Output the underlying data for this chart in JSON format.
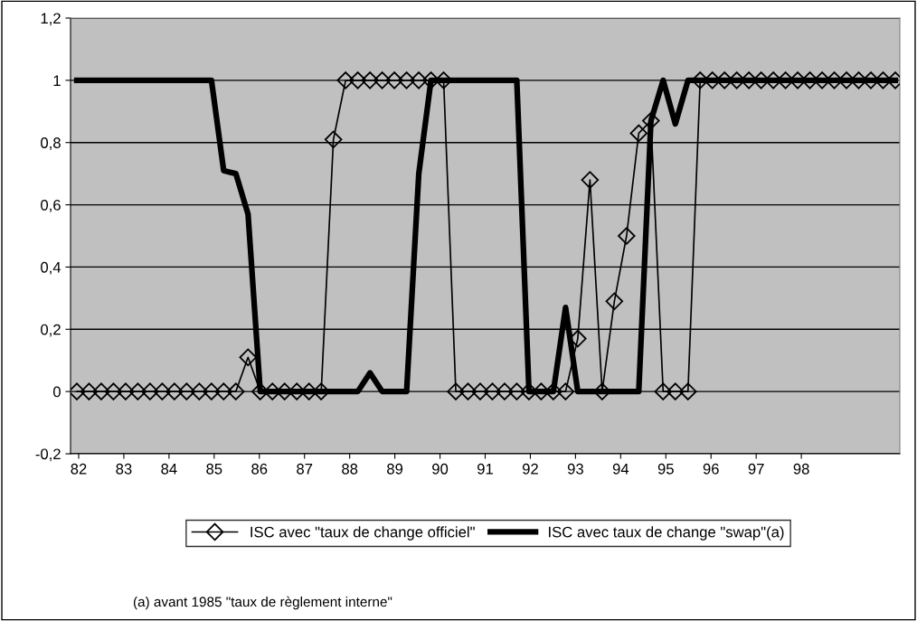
{
  "chart_data": {
    "type": "line",
    "x": [
      81.96,
      82.23,
      82.5,
      82.77,
      83.04,
      83.31,
      83.58,
      83.85,
      84.12,
      84.39,
      84.67,
      84.94,
      85.21,
      85.48,
      85.75,
      86.02,
      86.29,
      86.56,
      86.83,
      87.1,
      87.37,
      87.64,
      87.91,
      88.18,
      88.45,
      88.72,
      88.99,
      89.26,
      89.53,
      89.8,
      90.08,
      90.35,
      90.62,
      90.89,
      91.16,
      91.43,
      91.7,
      91.97,
      92.24,
      92.51,
      92.78,
      93.05,
      93.32,
      93.59,
      93.86,
      94.13,
      94.4,
      94.67,
      94.94,
      95.21,
      95.49,
      95.76,
      96.03,
      96.3,
      96.57,
      96.84,
      97.11,
      97.38,
      97.65,
      97.92,
      98.19,
      98.46,
      98.73,
      99.0,
      99.27,
      99.54,
      99.81,
      100.08
    ],
    "series": [
      {
        "name": "ISC avec \"taux de change officiel\"",
        "color": "#000000",
        "marker": "diamond",
        "values": [
          0,
          0,
          0,
          0,
          0,
          0,
          0,
          0,
          0,
          0,
          0,
          0,
          0,
          0,
          0.11,
          0,
          0,
          0,
          0,
          0,
          0,
          0.81,
          1,
          1,
          1,
          1,
          1,
          1,
          1,
          1,
          1,
          0,
          0,
          0,
          0,
          0,
          0,
          0,
          0,
          0,
          0,
          0.17,
          0.68,
          0,
          0.29,
          0.5,
          0.83,
          0.87,
          0,
          0,
          0,
          1,
          1,
          1,
          1,
          1,
          1,
          1,
          1,
          1,
          1,
          1,
          1,
          1,
          1,
          1,
          1,
          1
        ]
      },
      {
        "name": "ISC avec taux de change \"swap\"(a)",
        "color": "#000000",
        "marker": "none",
        "values": [
          1,
          1,
          1,
          1,
          1,
          1,
          1,
          1,
          1,
          1,
          1,
          1,
          0.71,
          0.7,
          0.57,
          0,
          0,
          0,
          0,
          0,
          0,
          0,
          0,
          0,
          0.06,
          0,
          0,
          0,
          0.7,
          1,
          1,
          1,
          1,
          1,
          1,
          1,
          1,
          0,
          0,
          0,
          0.27,
          0,
          0,
          0,
          0,
          0,
          0,
          0.87,
          1,
          0.86,
          1,
          1,
          1,
          1,
          1,
          1,
          1,
          1,
          1,
          1,
          1,
          1,
          1,
          1,
          1,
          1,
          1,
          1
        ]
      }
    ],
    "xlim": [
      81.82,
      100.18
    ],
    "xticks": [
      82,
      83,
      84,
      85,
      86,
      87,
      88,
      89,
      90,
      91,
      92,
      93,
      94,
      95,
      96,
      97,
      98
    ],
    "ylim": [
      -0.2,
      1.2
    ],
    "yticks": [
      {
        "value": -0.2,
        "label": "-0,2"
      },
      {
        "value": 0,
        "label": "0"
      },
      {
        "value": 0.2,
        "label": "0,2"
      },
      {
        "value": 0.4,
        "label": "0,4"
      },
      {
        "value": 0.6,
        "label": "0,6"
      },
      {
        "value": 0.8,
        "label": "0,8"
      },
      {
        "value": 1,
        "label": "1"
      },
      {
        "value": 1.2,
        "label": "1,2"
      }
    ],
    "grid": "y",
    "legend": "bottom",
    "annotations": [
      "(a) avant 1985 \"taux de règlement interne\""
    ]
  }
}
